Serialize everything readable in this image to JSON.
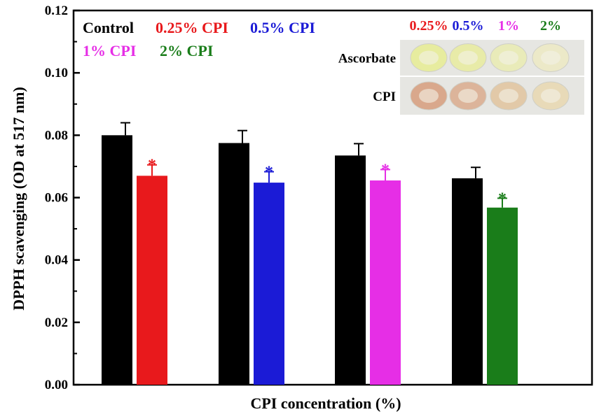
{
  "chart_data": {
    "type": "bar",
    "title": "",
    "xlabel": "CPI concentration (%)",
    "ylabel": "DPPH scavenging (OD at 517 nm)",
    "ylim": [
      0,
      0.12
    ],
    "yticks": [
      "0.00",
      "0.02",
      "0.04",
      "0.06",
      "0.08",
      "0.10",
      "0.12"
    ],
    "groups": [
      {
        "control": {
          "value": 0.08,
          "error": 0.004
        },
        "treated": {
          "value": 0.067,
          "error": 0.0035,
          "sig": "*"
        }
      },
      {
        "control": {
          "value": 0.0775,
          "error": 0.004
        },
        "treated": {
          "value": 0.0648,
          "error": 0.0035,
          "sig": "*"
        }
      },
      {
        "control": {
          "value": 0.0735,
          "error": 0.0038
        },
        "treated": {
          "value": 0.0655,
          "error": 0.0035,
          "sig": "*"
        }
      },
      {
        "control": {
          "value": 0.0662,
          "error": 0.0035
        },
        "treated": {
          "value": 0.0568,
          "error": 0.003,
          "sig": "*"
        }
      }
    ],
    "series": [
      {
        "name": "Control",
        "color": "#000000"
      },
      {
        "name": "0.25% CPI",
        "color": "#e8191c"
      },
      {
        "name": "0.5% CPI",
        "color": "#1b1bd6"
      },
      {
        "name": "1% CPI",
        "color": "#e62ee6"
      },
      {
        "name": "2% CPI",
        "color": "#1a7d1a"
      }
    ],
    "legend_placement": "top-left",
    "grid": false
  },
  "inset": {
    "headers": [
      {
        "label": "0.25%",
        "color": "#e8191c"
      },
      {
        "label": "0.5%",
        "color": "#1b1bd6"
      },
      {
        "label": "1%",
        "color": "#e62ee6"
      },
      {
        "label": "2%",
        "color": "#1a7d1a"
      }
    ],
    "rows": [
      {
        "label": "Ascorbate",
        "well_colors": [
          "#e7ec9f",
          "#e8eba8",
          "#e9ebb9",
          "#ece9c8"
        ]
      },
      {
        "label": "CPI",
        "well_colors": [
          "#d9a88c",
          "#dcb49a",
          "#e2c9a8",
          "#e8dab8"
        ]
      }
    ]
  }
}
